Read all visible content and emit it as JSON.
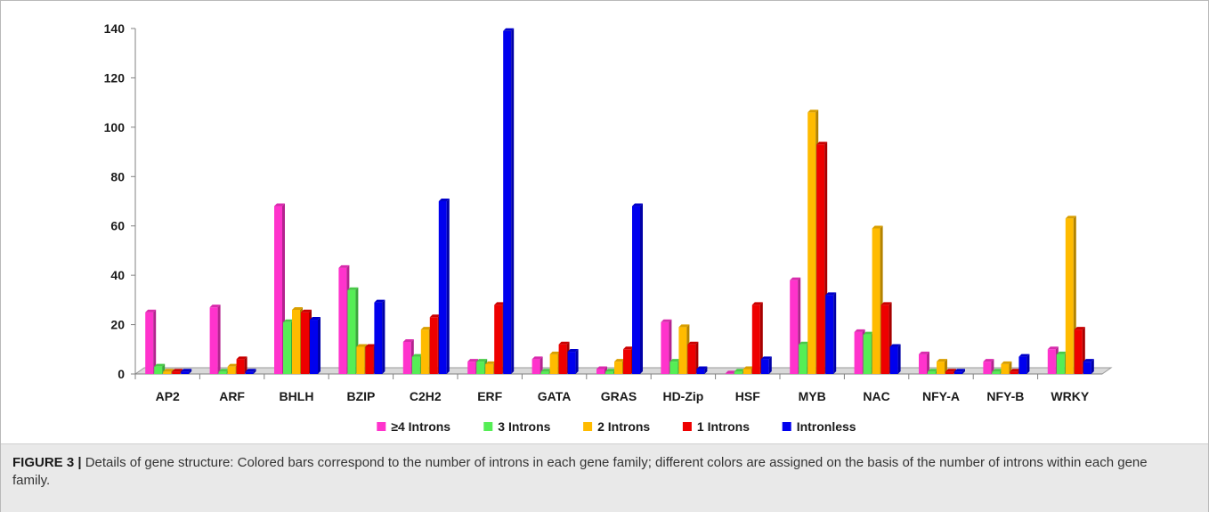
{
  "chart_data": {
    "type": "bar",
    "title": "",
    "xlabel": "",
    "ylabel": "",
    "ylim": [
      0,
      140
    ],
    "yticks": [
      0,
      20,
      40,
      60,
      80,
      100,
      120,
      140
    ],
    "grid": false,
    "legend_position": "bottom",
    "categories": [
      "AP2",
      "ARF",
      "BHLH",
      "BZIP",
      "C2H2",
      "ERF",
      "GATA",
      "GRAS",
      "HD-Zip",
      "HSF",
      "MYB",
      "NAC",
      "NFY-A",
      "NFY-B",
      "WRKY"
    ],
    "series": [
      {
        "name": "≥4 Introns",
        "color": "#ff33cc",
        "values": [
          25,
          27,
          68,
          43,
          13,
          5,
          6,
          2,
          21,
          0,
          38,
          17,
          8,
          5,
          10
        ]
      },
      {
        "name": "3 Introns",
        "color": "#55ee55",
        "values": [
          3,
          1,
          21,
          34,
          7,
          5,
          1,
          1,
          5,
          1,
          12,
          16,
          1,
          1,
          8
        ]
      },
      {
        "name": "2 Introns",
        "color": "#ffbb00",
        "values": [
          1,
          3,
          26,
          11,
          18,
          4,
          8,
          5,
          19,
          2,
          106,
          59,
          5,
          4,
          63
        ]
      },
      {
        "name": "1 Introns",
        "color": "#ee0000",
        "values": [
          1,
          6,
          25,
          11,
          23,
          28,
          12,
          10,
          12,
          28,
          93,
          28,
          1,
          1,
          18
        ]
      },
      {
        "name": "Intronless",
        "color": "#0000ee",
        "values": [
          1,
          1,
          22,
          29,
          70,
          139,
          9,
          68,
          2,
          6,
          32,
          11,
          1,
          7,
          5
        ]
      }
    ]
  },
  "caption": {
    "label": "FIGURE 3 |",
    "text": "Details of gene structure: Colored bars correspond to the number of introns in each gene family; different colors are assigned on the basis of the number of introns within each gene family."
  }
}
